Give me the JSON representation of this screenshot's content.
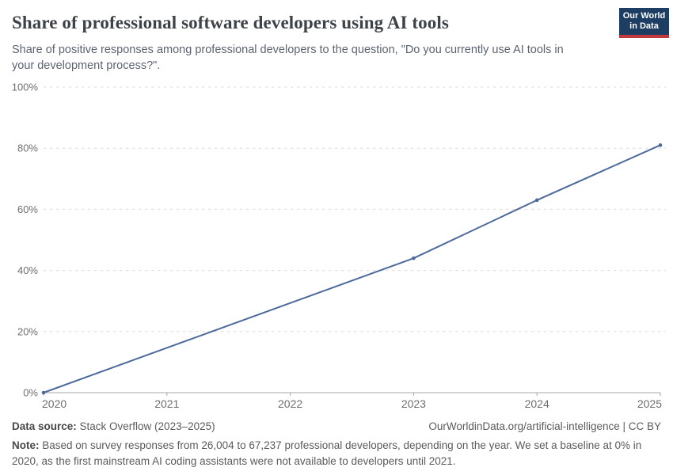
{
  "header": {
    "title": "Share of professional software developers using AI tools",
    "subtitle": "Share of positive responses among professional developers to the question, \"Do you currently use AI tools in your development process?\".",
    "logo": {
      "line1": "Our World",
      "line2": "in Data",
      "bg_color": "#1d3d63",
      "accent_color": "#c0393f"
    }
  },
  "chart_data": {
    "type": "line",
    "title": "Share of professional software developers using AI tools",
    "x": [
      2020,
      2023,
      2024,
      2025
    ],
    "values": [
      0,
      44,
      63,
      81
    ],
    "series": [
      {
        "name": "Professional software developers using AI tools",
        "x": [
          2020,
          2023,
          2024,
          2025
        ],
        "values": [
          0,
          44,
          63,
          81
        ]
      }
    ],
    "xlabel": "",
    "ylabel": "",
    "xlim": [
      2020,
      2025
    ],
    "ylim": [
      0,
      100
    ],
    "x_ticks": [
      "2020",
      "2021",
      "2022",
      "2023",
      "2024",
      "2025"
    ],
    "x_tick_values": [
      2020,
      2021,
      2022,
      2023,
      2024,
      2025
    ],
    "y_ticks": [
      "0%",
      "20%",
      "40%",
      "60%",
      "80%",
      "100%"
    ],
    "y_tick_values": [
      0,
      20,
      40,
      60,
      80,
      100
    ],
    "grid": "horizontal-dashed",
    "legend": "none",
    "line_color": "#4c6a9c",
    "grid_color": "#dcdcdc",
    "axis_color": "#a7a7a7",
    "tick_label_color": "#6e6e6e",
    "markers": true
  },
  "footer": {
    "source_label": "Data source:",
    "source_value": " Stack Overflow (2023–2025)",
    "attribution": "OurWorldinData.org/artificial-intelligence | CC BY",
    "note_label": "Note:",
    "note_value": " Based on survey responses from 26,004 to 67,237 professional developers, depending on the year. We set a baseline at 0% in 2020, as the first mainstream AI coding assistants were not available to developers until 2021."
  }
}
